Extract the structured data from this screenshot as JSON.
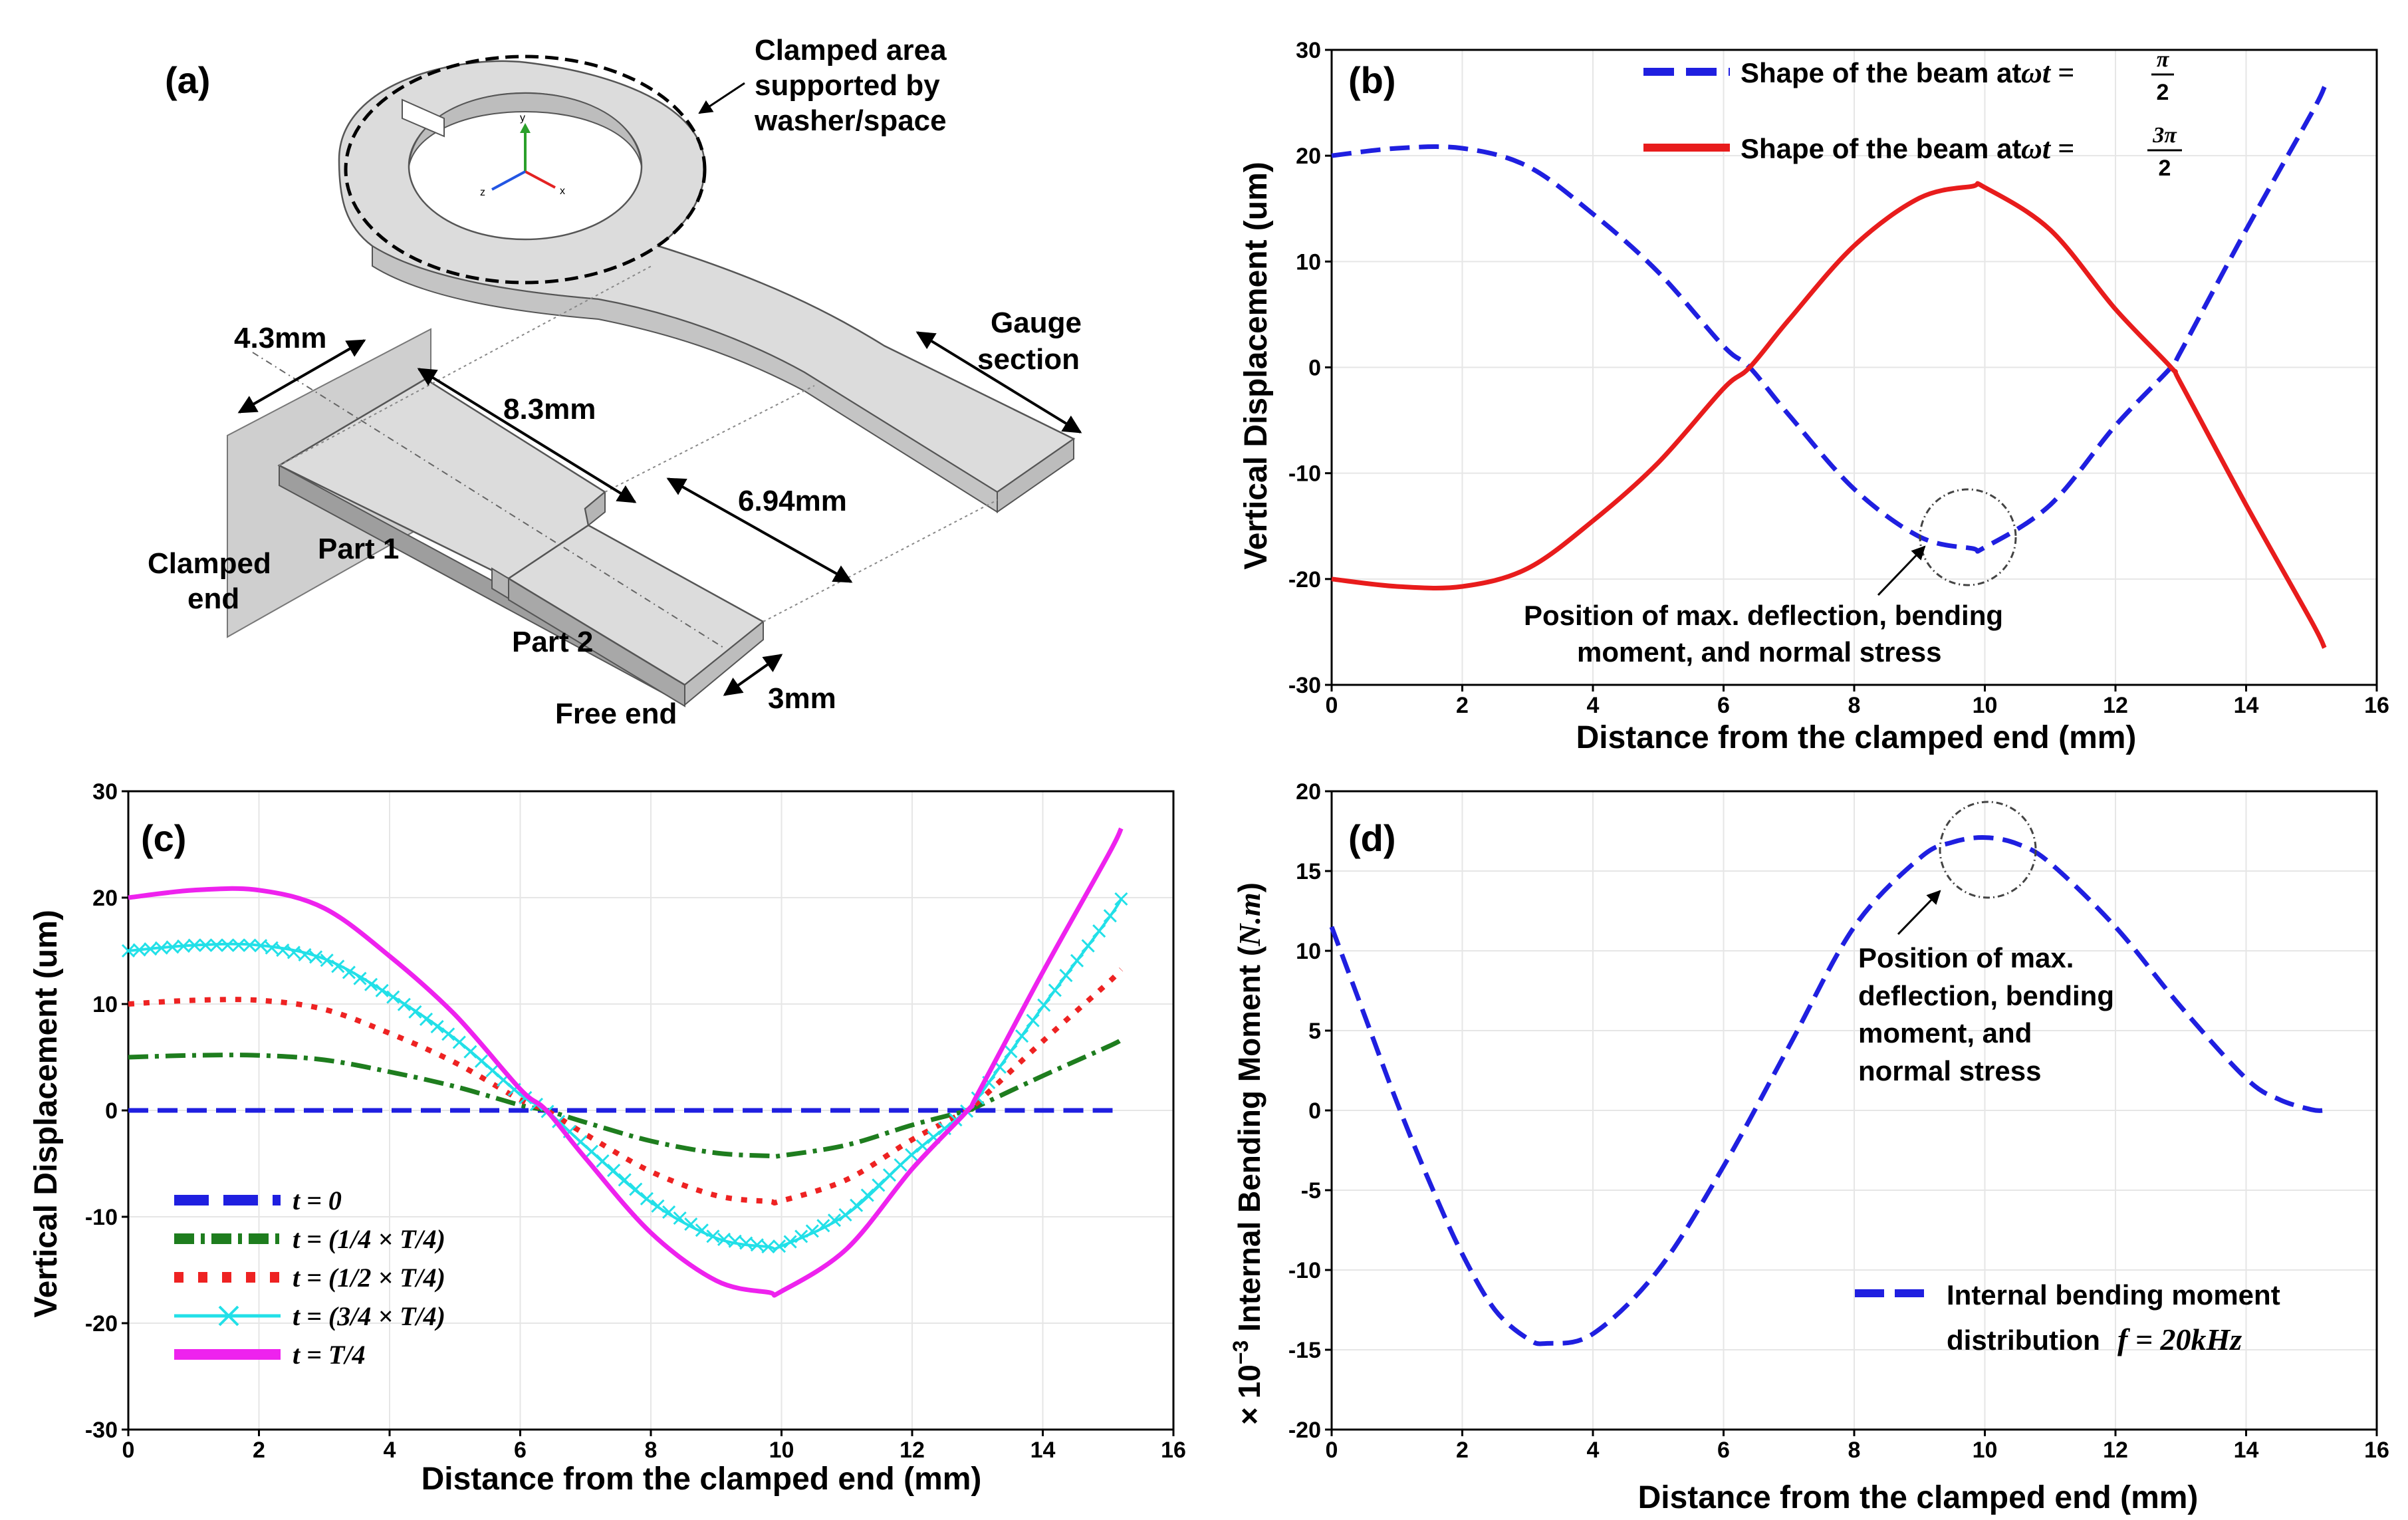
{
  "colors": {
    "blue": "#1f1fe0",
    "red": "#e81c1c",
    "green": "#1e7d1e",
    "dotred": "#ee2222",
    "cyan": "#22e0e8",
    "magenta": "#ee22ee",
    "part_face": "#dcdcdc",
    "part_edge": "#555555",
    "grid": "#e6e6e6"
  },
  "panel_a": {
    "label": "(a)",
    "clamped_area": [
      "Clamped area",
      "supported by",
      "washer/space"
    ],
    "gauge_section": [
      "Gauge",
      "section"
    ],
    "clamped_end": [
      "Clamped",
      "end"
    ],
    "free_end": "Free end",
    "part1": "Part 1",
    "part2": "Part 2",
    "dim_width": "4.3mm",
    "dim_part1": "8.3mm",
    "dim_part2": "6.94mm",
    "dim_small": "3mm",
    "axis_x": "x",
    "axis_y": "y",
    "axis_z": "z"
  },
  "chart_data": [
    {
      "id": "b",
      "type": "line",
      "label": "(b)",
      "xlabel": "Distance from the clamped end (mm)",
      "ylabel": "Vertical Displacement (um)",
      "xlim": [
        0,
        16
      ],
      "ylim": [
        -30,
        30
      ],
      "xticks": [
        0,
        2,
        4,
        6,
        8,
        10,
        12,
        14,
        16
      ],
      "yticks": [
        -30,
        -20,
        -10,
        0,
        10,
        20,
        30
      ],
      "grid": true,
      "legend_position": "top-right",
      "series": [
        {
          "name": "Shape of the beam at ωt = π/2",
          "legend_text": "Shape of the beam at",
          "legend_math": "ωt =",
          "frac_num": "π",
          "frac_den": "2",
          "color": "#1f1fe0",
          "style": "dashed",
          "x": [
            0,
            1,
            2,
            3,
            4,
            5,
            6,
            6.4,
            7,
            8,
            9,
            9.8,
            10,
            11,
            12,
            12.85,
            13,
            14,
            15,
            15.2
          ],
          "y": [
            20,
            20.7,
            20.7,
            19,
            14.5,
            9,
            2,
            0,
            -4.5,
            -11.5,
            -16,
            -17.1,
            -17,
            -13,
            -5.5,
            0,
            1.5,
            13,
            24,
            26.5
          ]
        },
        {
          "name": "Shape of the beam at ωt = 3π/2",
          "legend_text": "Shape of the beam at",
          "legend_math": "ωt =",
          "frac_num": "3π",
          "frac_den": "2",
          "color": "#e81c1c",
          "style": "solid",
          "x": [
            0,
            1,
            2,
            3,
            4,
            5,
            6,
            6.4,
            7,
            8,
            9,
            9.8,
            10,
            11,
            12,
            12.85,
            13,
            14,
            15,
            15.2
          ],
          "y": [
            -20,
            -20.7,
            -20.7,
            -19,
            -14.5,
            -9,
            -2,
            0,
            4.5,
            11.5,
            16,
            17.1,
            17,
            13,
            5.5,
            0,
            -1.5,
            -13,
            -24,
            -26.5
          ]
        }
      ],
      "annotation": [
        "Position of max. deflection, bending",
        "moment, and normal stress"
      ]
    },
    {
      "id": "c",
      "type": "line",
      "label": "(c)",
      "xlabel": "Distance from the clamped end (mm)",
      "ylabel": "Vertical Displacement (um)",
      "xlim": [
        0,
        16
      ],
      "ylim": [
        -30,
        30
      ],
      "xticks": [
        0,
        2,
        4,
        6,
        8,
        10,
        12,
        14,
        16
      ],
      "yticks": [
        -30,
        -20,
        -10,
        0,
        10,
        20,
        30
      ],
      "grid": true,
      "legend_position": "lower-left",
      "series": [
        {
          "name": "t = 0",
          "color": "#1f1fe0",
          "style": "dashed",
          "scale": 0
        },
        {
          "name": "t = (1/4 × T/4)",
          "color": "#1e7d1e",
          "style": "dashdot",
          "scale": 0.25
        },
        {
          "name": "t = (1/2 × T/4)",
          "color": "#ee2222",
          "style": "dotted",
          "scale": 0.5
        },
        {
          "name": "t = (3/4 × T/4)",
          "color": "#22e0e8",
          "style": "x-marker",
          "scale": 0.75
        },
        {
          "name": "t = T/4",
          "color": "#ee22ee",
          "style": "solid",
          "scale": 1
        }
      ],
      "x": [
        0,
        1,
        2,
        3,
        4,
        5,
        6,
        6.4,
        7,
        8,
        9,
        9.8,
        10,
        11,
        12,
        12.85,
        13,
        14,
        15,
        15.2
      ],
      "base_y": [
        20,
        20.7,
        20.7,
        19,
        14.5,
        9,
        2,
        0,
        -4.5,
        -11.5,
        -16,
        -17.1,
        -17,
        -13,
        -5.5,
        0,
        1.5,
        13,
        24,
        26.5
      ]
    },
    {
      "id": "d",
      "type": "line",
      "label": "(d)",
      "xlabel": "Distance from the clamped end (mm)",
      "ylabel": "× 10⁻³ Internal Bending Moment (N.m)",
      "ylabel_prefix": "× 10",
      "ylabel_exp": "−3",
      "ylabel_main": " Internal Bending Moment (",
      "ylabel_unit": "N.m",
      "ylabel_close": ")",
      "xlim": [
        0,
        16
      ],
      "ylim": [
        -20,
        20
      ],
      "xticks": [
        0,
        2,
        4,
        6,
        8,
        10,
        12,
        14,
        16
      ],
      "yticks": [
        -20,
        -15,
        -10,
        -5,
        0,
        5,
        10,
        15,
        20
      ],
      "grid": true,
      "legend_position": "lower-right",
      "series": [
        {
          "name": "Internal bending moment distribution f = 20kHz",
          "legend_line1": "Internal bending moment",
          "legend_line2": "distribution",
          "legend_math": "f = 20kHz",
          "color": "#1f1fe0",
          "style": "dashed",
          "x": [
            0,
            0.5,
            1,
            1.5,
            2,
            2.5,
            3,
            3.3,
            4,
            5,
            6,
            7,
            8,
            9,
            9.5,
            10,
            10.5,
            11,
            12,
            13,
            14,
            14.5,
            15,
            15.2
          ],
          "y": [
            11.5,
            6,
            0.5,
            -4.5,
            -9,
            -12.5,
            -14.3,
            -14.6,
            -14,
            -10,
            -3.5,
            4,
            11.5,
            15.8,
            16.8,
            17.1,
            16.7,
            15.5,
            11.5,
            6.5,
            2,
            0.7,
            0.05,
            0
          ]
        }
      ],
      "annotation": [
        "Position of max.",
        "deflection, bending",
        "moment, and",
        "normal stress"
      ]
    }
  ]
}
